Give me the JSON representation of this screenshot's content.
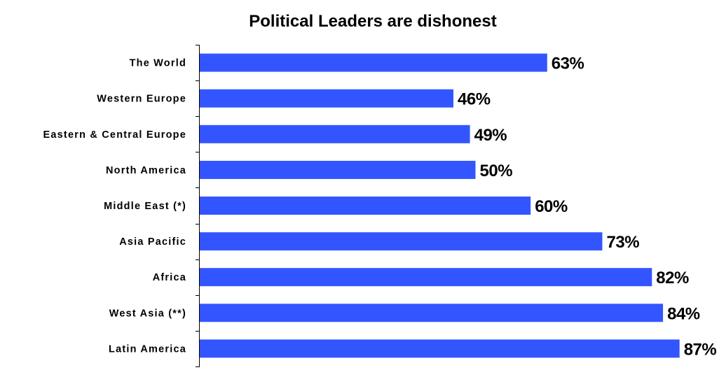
{
  "chart_data": {
    "type": "bar",
    "orientation": "horizontal",
    "title": "Political Leaders are dishonest",
    "xlabel": "",
    "ylabel": "",
    "categories": [
      "The World",
      "Western Europe",
      "Eastern & Central Europe",
      "North America",
      "Middle East (*)",
      "Asia Pacific",
      "Africa",
      "West Asia (**)",
      "Latin America"
    ],
    "values": [
      63,
      46,
      49,
      50,
      60,
      73,
      82,
      84,
      87
    ],
    "value_labels": [
      "63%",
      "46%",
      "49%",
      "50%",
      "60%",
      "73%",
      "82%",
      "84%",
      "87%"
    ],
    "unit": "%",
    "xlim": [
      0,
      100
    ],
    "grid": false,
    "legend": "none",
    "bar_color": "#3355FF"
  }
}
